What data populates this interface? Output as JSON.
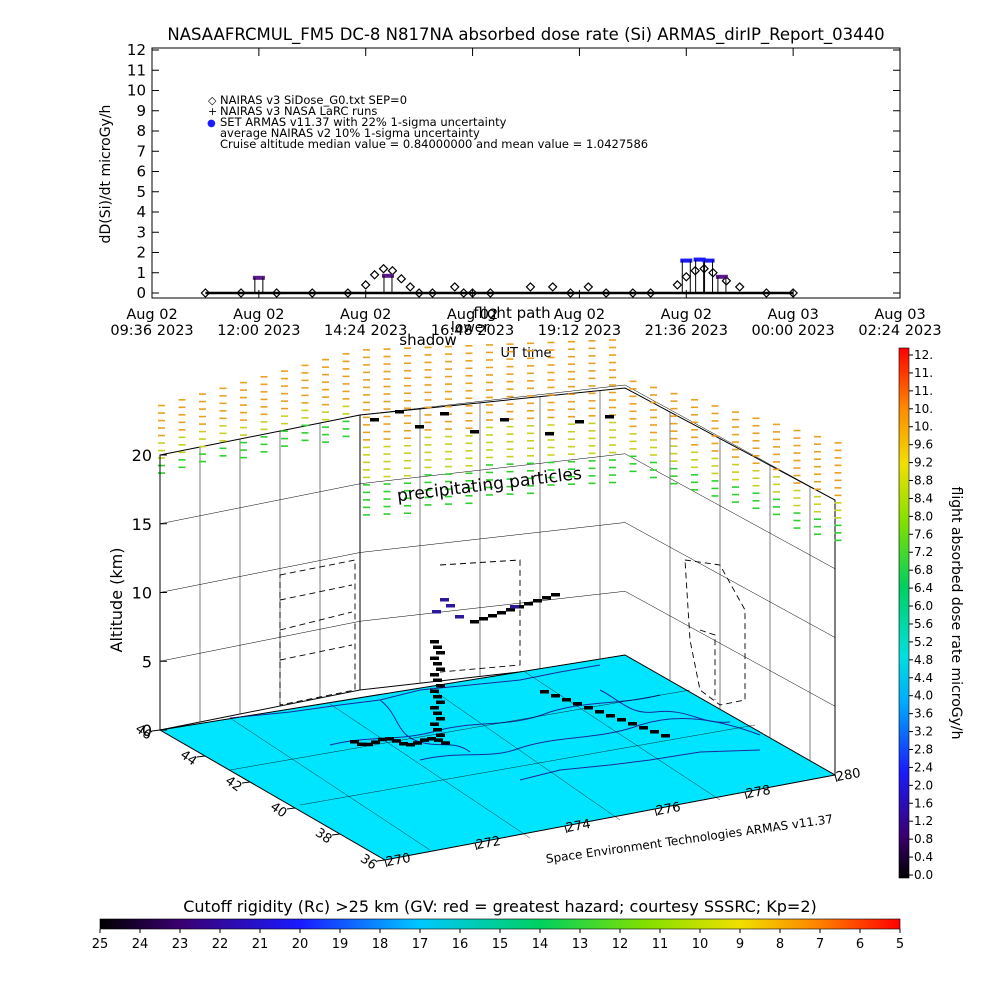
{
  "title": "NASAAFRCMUL_FM5 DC-8   N817NA absorbed dose rate (Si) ARMAS_dirIP_Report_03440",
  "chart_data": [
    {
      "type": "scatter",
      "ylabel": "dD(Si)/dt microGy/h",
      "xlabel": "UT time",
      "ylim": [
        0,
        12
      ],
      "yticks": [
        "0",
        "1",
        "2",
        "3",
        "4",
        "5",
        "6",
        "7",
        "8",
        "9",
        "10",
        "11",
        "12"
      ],
      "xtick_labels": [
        {
          "line1": "Aug 02",
          "line2": "09:36 2023"
        },
        {
          "line1": "Aug 02",
          "line2": "12:00 2023"
        },
        {
          "line1": "Aug 02",
          "line2": "14:24 2023"
        },
        {
          "line1": "Aug 02",
          "line2": "16:48 2023"
        },
        {
          "line1": "Aug 02",
          "line2": "19:12 2023"
        },
        {
          "line1": "Aug 02",
          "line2": "21:36 2023"
        },
        {
          "line1": "Aug 03",
          "line2": "00:00 2023"
        },
        {
          "line1": "Aug 03",
          "line2": "02:24 2023"
        }
      ],
      "legend": [
        {
          "symbol": "◇",
          "text": "NAIRAS v3 SiDose_G0.txt SEP=0"
        },
        {
          "symbol": "+",
          "text": "NAIRAS v3 NASA LaRC runs"
        },
        {
          "symbol": "●",
          "text": "SET ARMAS v11.37 with 22% 1-sigma uncertainty"
        },
        {
          "symbol": "",
          "text": "average NAIRAS v2 10% 1-sigma uncertainty"
        },
        {
          "symbol": "",
          "text": "Cruise altitude median value = 0.84000000 and mean value = 1.0427586"
        }
      ],
      "series": [
        {
          "name": "NAIRAS v3 SiDose_G0.txt SEP=0",
          "x_hours": [
            1.2,
            2.0,
            2.8,
            3.6,
            4.4,
            4.8,
            5.0,
            5.2,
            5.4,
            5.6,
            5.8,
            6.0,
            6.3,
            6.8,
            7.0,
            7.2,
            7.6,
            8.5,
            9.0,
            9.4,
            9.8,
            10.2,
            10.8,
            11.2,
            11.8,
            12.0,
            12.2,
            12.4,
            12.6,
            12.9,
            13.2,
            13.8,
            14.4
          ],
          "y": [
            0,
            0,
            0,
            0,
            0,
            0.4,
            0.9,
            1.2,
            1.1,
            0.7,
            0.3,
            0,
            0,
            0.3,
            0,
            0,
            0,
            0.3,
            0.3,
            0,
            0.3,
            0,
            0,
            0,
            0.4,
            0.8,
            1.1,
            1.2,
            1.0,
            0.6,
            0.3,
            0,
            0
          ]
        },
        {
          "name": "SET ARMAS v11.37 with 22% 1-sigma uncertainty",
          "x_hours": [
            2.4,
            5.3,
            12.0,
            12.3,
            12.5,
            12.8
          ],
          "y": [
            0.75,
            0.85,
            1.6,
            1.65,
            1.6,
            0.8
          ]
        }
      ]
    },
    {
      "type": "scatter",
      "zlabel": "Altitude (km)",
      "zticks": [
        "0",
        "5",
        "10",
        "15",
        "20"
      ],
      "lat_ticks": [
        "46",
        "44",
        "42",
        "40",
        "38",
        "36"
      ],
      "lon_ticks": [
        "270",
        "272",
        "274",
        "276",
        "278",
        "280"
      ],
      "annotations": [
        "precipitating particles",
        "flight path",
        "shadow",
        "lower"
      ],
      "footer": "Space Environment Technologies ARMAS v11.37"
    }
  ],
  "dose_colorbar": {
    "label": "flight absorbed dose rate microGy/h",
    "values": [
      "12.",
      "11.",
      "11.",
      "10.",
      "10.",
      "9.6",
      "9.2",
      "8.8",
      "8.4",
      "8.0",
      "7.6",
      "7.2",
      "6.8",
      "6.4",
      "6.0",
      "5.6",
      "5.2",
      "4.8",
      "4.4",
      "4.0",
      "3.6",
      "3.2",
      "2.8",
      "2.4",
      "2.0",
      "1.6",
      "1.2",
      "0.8",
      "0.4",
      "0.0"
    ]
  },
  "rigidity_colorbar": {
    "label": "Cutoff rigidity (Rc) >25 km (GV: red = greatest hazard; courtesy SSSRC; Kp=2)",
    "values": [
      "25",
      "24",
      "23",
      "22",
      "21",
      "20",
      "19",
      "18",
      "17",
      "16",
      "15",
      "14",
      "13",
      "12",
      "11",
      "10",
      "9",
      "8",
      "7",
      "6",
      "5"
    ]
  },
  "colors": {
    "ground": "#00e5ff",
    "armas_marker": "#1a1aff",
    "curtain_low": "#2ed02e",
    "curtain_high": "#e8a020"
  }
}
